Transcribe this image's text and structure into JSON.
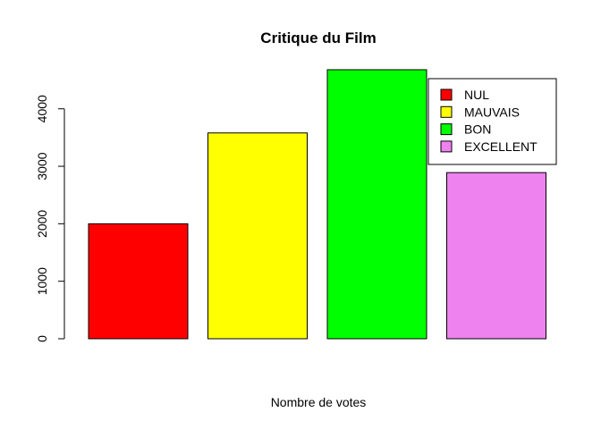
{
  "chart_data": {
    "type": "bar",
    "title": "Critique du Film",
    "xlabel": "Nombre de votes",
    "ylabel": "",
    "categories": [
      "NUL",
      "MAUVAIS",
      "BON",
      "EXCELLENT"
    ],
    "values": [
      2000,
      3580,
      4680,
      2890
    ],
    "colors": [
      "#ff0000",
      "#ffff00",
      "#00ff00",
      "#ee82ee"
    ],
    "ylim": [
      0,
      4680
    ],
    "yticks": [
      "0",
      "1000",
      "2000",
      "3000",
      "4000"
    ],
    "legend": {
      "position": "top-right",
      "entries": [
        "NUL",
        "MAUVAIS",
        "BON",
        "EXCELLENT"
      ]
    },
    "grid": false
  }
}
